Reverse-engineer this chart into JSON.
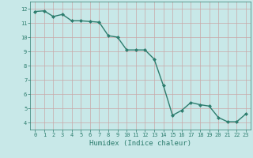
{
  "x": [
    0,
    1,
    2,
    3,
    4,
    5,
    6,
    7,
    8,
    9,
    10,
    11,
    12,
    13,
    14,
    15,
    16,
    17,
    18,
    19,
    20,
    21,
    22,
    23
  ],
  "y": [
    11.8,
    11.85,
    11.45,
    11.6,
    11.15,
    11.15,
    11.1,
    11.05,
    10.1,
    10.0,
    9.1,
    9.1,
    9.1,
    8.45,
    6.6,
    4.5,
    4.85,
    5.4,
    5.25,
    5.15,
    4.35,
    4.05,
    4.05,
    4.6
  ],
  "line_color": "#2d7d6e",
  "marker": "D",
  "marker_size": 2,
  "bg_color": "#c8e8e8",
  "grid_color": "#c8a8a8",
  "xlabel": "Humidex (Indice chaleur)",
  "xlim": [
    -0.5,
    23.5
  ],
  "ylim": [
    3.5,
    12.5
  ],
  "yticks": [
    4,
    5,
    6,
    7,
    8,
    9,
    10,
    11,
    12
  ],
  "xticks": [
    0,
    1,
    2,
    3,
    4,
    5,
    6,
    7,
    8,
    9,
    10,
    11,
    12,
    13,
    14,
    15,
    16,
    17,
    18,
    19,
    20,
    21,
    22,
    23
  ],
  "tick_color": "#2d7d6e",
  "label_color": "#2d7d6e",
  "xlabel_fontsize": 6.5,
  "tick_fontsize": 5,
  "linewidth": 1.0
}
